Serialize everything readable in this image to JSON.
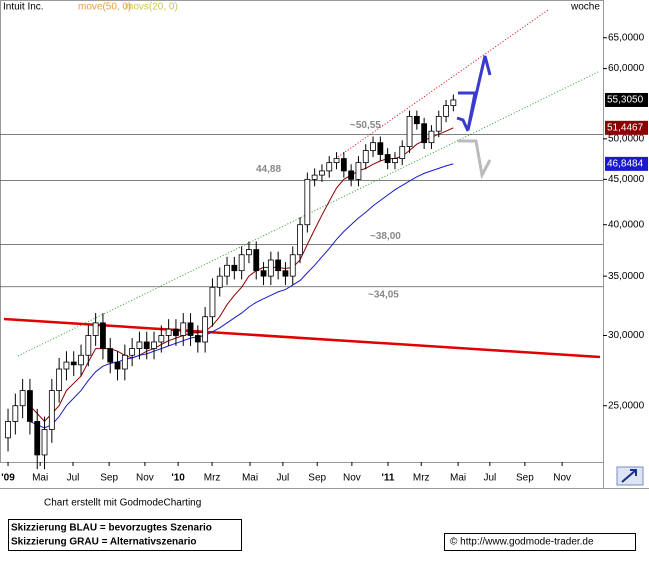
{
  "chart_data": {
    "type": "candlestick",
    "title": "Intuit Inc.",
    "interval": "woche",
    "log_scale": true,
    "xlim": [
      -2.2,
      163
    ],
    "ylim": [
      21.6,
      71.7
    ],
    "xticks": [
      {
        "value": 0,
        "label": "'09"
      },
      {
        "value": 8.8,
        "label": "Mai"
      },
      {
        "value": 17.8,
        "label": "Jul"
      },
      {
        "value": 27.7,
        "label": "Sep"
      },
      {
        "value": 37.5,
        "label": "Nov"
      },
      {
        "value": 46.6,
        "label": "'10"
      },
      {
        "value": 55.9,
        "label": "Mrz"
      },
      {
        "value": 66.3,
        "label": "Mai"
      },
      {
        "value": 75.3,
        "label": "Jul"
      },
      {
        "value": 84.7,
        "label": "Sep"
      },
      {
        "value": 94.2,
        "label": "Nov"
      },
      {
        "value": 104.1,
        "label": "'11"
      },
      {
        "value": 113.2,
        "label": "Mrz"
      },
      {
        "value": 123.3,
        "label": "Mai"
      },
      {
        "value": 132,
        "label": "Jul"
      },
      {
        "value": 141.6,
        "label": "Sep"
      },
      {
        "value": 151.8,
        "label": "Nov"
      }
    ],
    "yticks": [
      {
        "value": 25,
        "label": "25,0000"
      },
      {
        "value": 30,
        "label": "30,0000"
      },
      {
        "value": 35,
        "label": "35,0000"
      },
      {
        "value": 40,
        "label": "40,0000"
      },
      {
        "value": 45,
        "label": "45,0000"
      },
      {
        "value": 50,
        "label": "50,0000"
      },
      {
        "value": 60,
        "label": "60,0000"
      },
      {
        "value": 65,
        "label": "65,0000"
      }
    ],
    "x": [
      0,
      2,
      4,
      6,
      8,
      10,
      12,
      14,
      16,
      18,
      20,
      22,
      24,
      26,
      28,
      30,
      32,
      34,
      36,
      38,
      40,
      42,
      44,
      46,
      48,
      50,
      52,
      54,
      56,
      58,
      60,
      62,
      64,
      66,
      68,
      70,
      72,
      74,
      76,
      78,
      80,
      82,
      84,
      86,
      88,
      90,
      92,
      94,
      96,
      98,
      100,
      102,
      104,
      106,
      108,
      110,
      112,
      114,
      116,
      118,
      120,
      122
    ],
    "open": [
      23,
      24,
      25,
      26,
      24,
      22,
      23.5,
      26,
      27.5,
      28,
      27.8,
      28.5,
      30,
      31,
      29,
      28,
      27.5,
      28.5,
      29,
      29.5,
      29,
      29.5,
      30,
      30.5,
      30,
      31,
      30,
      29.5,
      31.5,
      34,
      35,
      36,
      35.5,
      37,
      37.5,
      35.5,
      35,
      36.5,
      35.5,
      35,
      37,
      40,
      45,
      45.5,
      46,
      47,
      47.5,
      46,
      45,
      47,
      48.5,
      49.5,
      48,
      47,
      47.5,
      49,
      53,
      52,
      49.5,
      51,
      53,
      54.5
    ],
    "high": [
      24.8,
      25.8,
      26.8,
      26.8,
      24.8,
      24.3,
      26.8,
      28.3,
      28.8,
      28.8,
      29.3,
      30.8,
      31.8,
      31.8,
      29.8,
      28.8,
      29.3,
      29.8,
      30.3,
      30.3,
      30.3,
      30.8,
      31.3,
      31.3,
      31.8,
      31.8,
      30.8,
      32.3,
      34.8,
      35.8,
      36.8,
      36.8,
      37.8,
      38.3,
      38.3,
      36.3,
      37.3,
      37.3,
      36.3,
      37.8,
      40.8,
      45.8,
      46.3,
      46.8,
      47.8,
      48.3,
      48.3,
      46.8,
      47.8,
      49.3,
      50.3,
      50.3,
      48.8,
      48.3,
      49.8,
      53.8,
      53.8,
      52.8,
      51.8,
      53.8,
      55.3,
      56.1
    ],
    "low": [
      22.2,
      23.2,
      24.2,
      23.2,
      21.2,
      21.2,
      22.7,
      25.2,
      26.7,
      27,
      27,
      27.7,
      29.2,
      28.2,
      27.2,
      26.7,
      26.7,
      27.7,
      28.2,
      28.2,
      28.2,
      28.7,
      29.2,
      29.2,
      29.2,
      29.2,
      28.7,
      28.7,
      30.7,
      33.2,
      34.2,
      34.7,
      34.7,
      36.2,
      34.7,
      34.2,
      34.2,
      34.7,
      34.2,
      34.2,
      36.2,
      39.2,
      44.2,
      44.7,
      45.2,
      46.2,
      45.2,
      44.2,
      44.2,
      46.2,
      47.7,
      47.2,
      46.2,
      46.2,
      46.7,
      48.2,
      51.2,
      48.7,
      48.7,
      50.2,
      52.2,
      53.7
    ],
    "close": [
      24,
      25,
      26,
      24,
      22,
      23.5,
      26,
      27.5,
      28,
      27.8,
      28.5,
      30,
      31,
      29,
      28,
      27.5,
      28.5,
      29,
      29.5,
      29,
      29.5,
      30,
      30.5,
      30,
      31,
      30,
      29.5,
      31.5,
      34,
      35,
      36,
      35.5,
      37,
      37.5,
      35.5,
      35,
      36.5,
      35.5,
      35,
      37,
      40,
      45,
      45.5,
      46,
      47,
      47.5,
      46,
      45,
      47,
      48.5,
      49.5,
      48,
      47,
      47.5,
      49,
      53,
      52,
      49.5,
      51,
      53,
      54.5,
      55.305
    ],
    "close_label": "55,3050",
    "series": [
      {
        "name": "move(50, 0)",
        "color": "#8b0000",
        "label_color": "#e8a040",
        "last_label": "51,4467",
        "values": [
          null,
          null,
          null,
          25,
          24.5,
          24,
          24.5,
          25,
          26,
          26.5,
          27,
          28,
          29,
          29,
          29,
          28.8,
          28.5,
          28.3,
          28.5,
          28.8,
          29,
          29.3,
          29.6,
          29.8,
          30,
          30.2,
          30.2,
          30.3,
          30.8,
          31.5,
          32.5,
          33.3,
          34,
          35,
          35.5,
          35.8,
          35.8,
          35.8,
          35.7,
          35.8,
          36.5,
          38,
          39.5,
          41,
          42.5,
          44,
          45,
          45.5,
          46,
          46.3,
          46.8,
          47.2,
          47.5,
          47.5,
          47.8,
          48.5,
          49.3,
          49.8,
          50.2,
          50.6,
          51,
          51.4467
        ]
      },
      {
        "name": "movs(20, 0)",
        "color": "#1a1acc",
        "label_color": "#c8c850",
        "last_label": "46,8484",
        "values": [
          null,
          null,
          null,
          24,
          23.8,
          23.6,
          23.8,
          24.3,
          25,
          25.5,
          26,
          26.7,
          27.3,
          27.7,
          27.9,
          28,
          28.2,
          28.3,
          28.5,
          28.6,
          28.8,
          29,
          29.2,
          29.4,
          29.6,
          29.8,
          29.9,
          30,
          30.3,
          30.6,
          31,
          31.4,
          31.8,
          32.3,
          32.7,
          33,
          33.3,
          33.6,
          33.8,
          34.2,
          34.6,
          35.3,
          36,
          36.8,
          37.6,
          38.5,
          39.3,
          40,
          40.7,
          41.3,
          42,
          42.6,
          43.2,
          43.8,
          44.3,
          44.8,
          45.3,
          45.7,
          46,
          46.3,
          46.6,
          46.8484
        ]
      }
    ],
    "levels": [
      {
        "value": 50.55,
        "label": "~50,55"
      },
      {
        "value": 44.88,
        "label": "44,88"
      },
      {
        "value": 38,
        "label": "~38,00"
      },
      {
        "value": 34.05,
        "label": "~34,05"
      }
    ]
  },
  "footer": {
    "credit": "Chart erstellt mit GodmodeCharting",
    "notes": [
      "Skizzierung BLAU = bevorzugtes Szenario",
      "Skizzierung GRAU = Alternativszenario"
    ],
    "url": "© http://www.godmode-trader.de"
  }
}
